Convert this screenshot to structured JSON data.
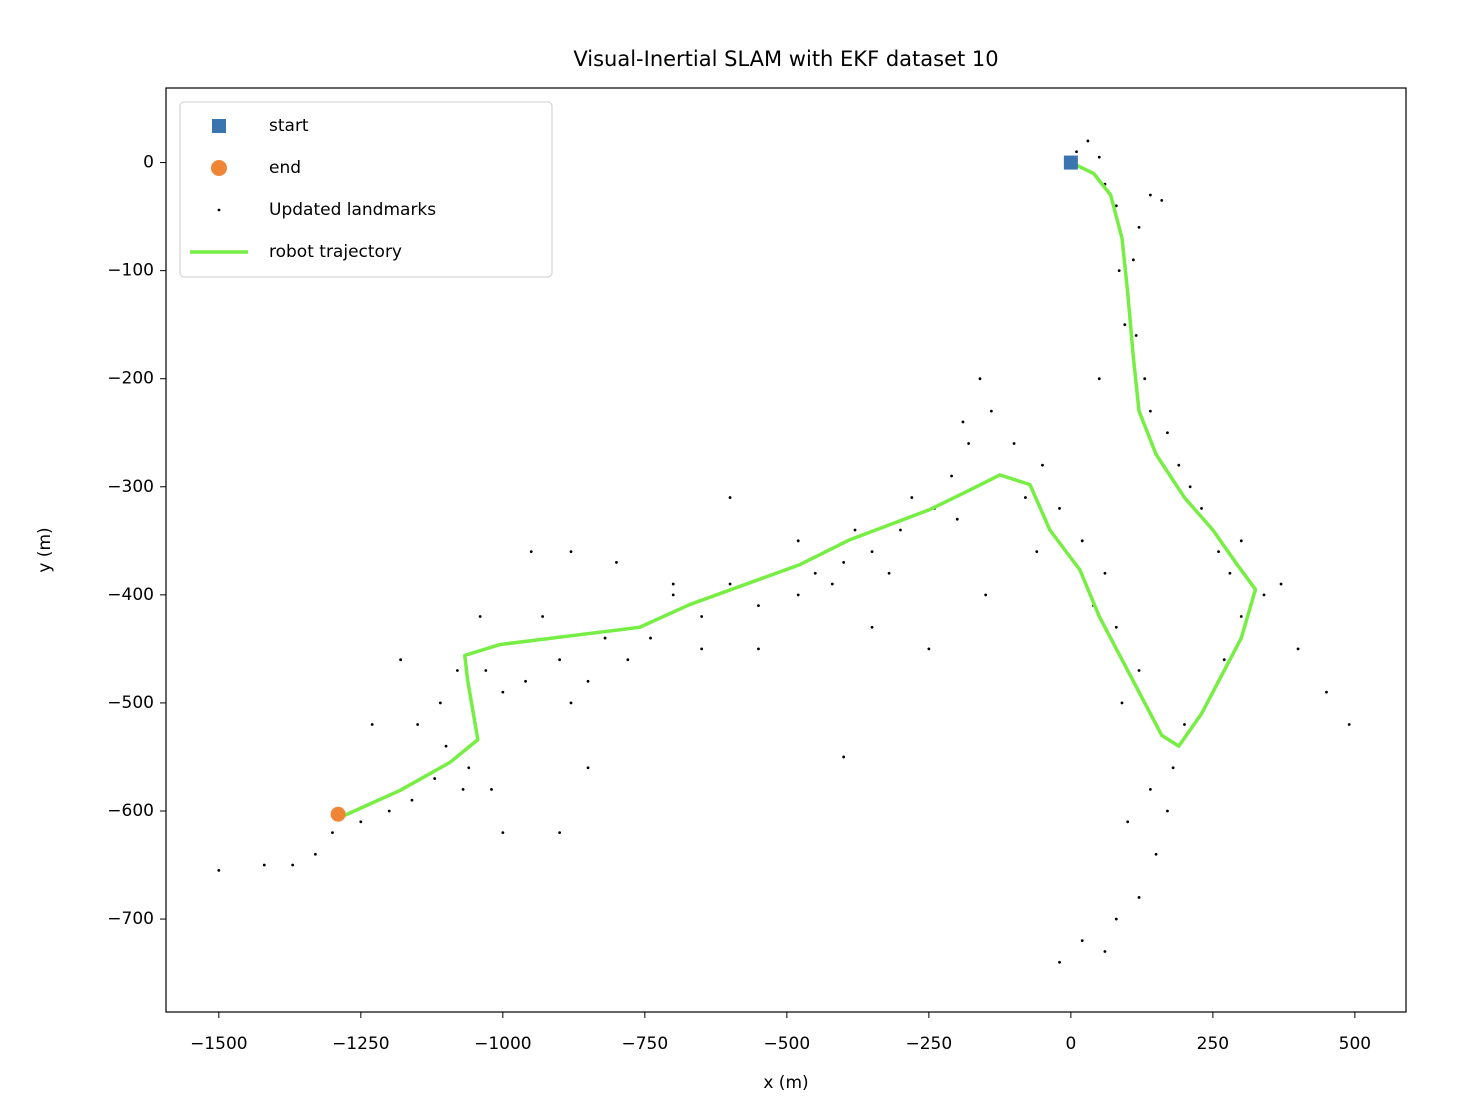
{
  "chart_data": {
    "type": "scatter",
    "title": "Visual-Inertial SLAM with EKF dataset 10",
    "xlabel": "x (m)",
    "ylabel": "y (m)",
    "xlim": [
      -1593,
      590
    ],
    "ylim": [
      -786,
      69
    ],
    "xticks": [
      {
        "value": -1500,
        "label": "−1500"
      },
      {
        "value": -1250,
        "label": "−1250"
      },
      {
        "value": -1000,
        "label": "−1000"
      },
      {
        "value": -750,
        "label": "−750"
      },
      {
        "value": -500,
        "label": "−500"
      },
      {
        "value": -250,
        "label": "−250"
      },
      0,
      250,
      500
    ],
    "yticks": [
      0,
      {
        "value": -100,
        "label": "−100"
      },
      {
        "value": -200,
        "label": "−200"
      },
      {
        "value": -300,
        "label": "−300"
      },
      {
        "value": -400,
        "label": "−400"
      },
      {
        "value": -500,
        "label": "−500"
      },
      {
        "value": -600,
        "label": "−600"
      },
      {
        "value": -700,
        "label": "−700"
      }
    ],
    "legend": "upper left",
    "series": [
      {
        "name": "start",
        "marker": "square",
        "color": "#3b75af",
        "x": [
          0
        ],
        "y": [
          0
        ]
      },
      {
        "name": "end",
        "marker": "circle",
        "color": "#ef8636",
        "x": [
          -1290
        ],
        "y": [
          -603
        ]
      },
      {
        "name": "Updated landmarks",
        "marker": "dot",
        "color": "#000000",
        "x": [
          10,
          30,
          50,
          60,
          80,
          120,
          140,
          160,
          85,
          110,
          95,
          115,
          130,
          140,
          170,
          190,
          210,
          230,
          260,
          280,
          300,
          340,
          370,
          400,
          450,
          490,
          50,
          300,
          270,
          240,
          200,
          180,
          170,
          150,
          120,
          80,
          60,
          20,
          -20,
          140,
          100,
          90,
          120,
          80,
          40,
          60,
          20,
          -20,
          -50,
          -100,
          -140,
          -160,
          -190,
          -210,
          -240,
          -300,
          -320,
          -350,
          -400,
          -420,
          -450,
          -480,
          -520,
          -550,
          -600,
          -650,
          -700,
          -740,
          -780,
          -820,
          -850,
          -880,
          -900,
          -930,
          -960,
          -1000,
          -1030,
          -1080,
          -1110,
          -1100,
          -1060,
          -1020,
          -1000,
          -1070,
          -1120,
          -1160,
          -1200,
          -1250,
          -1300,
          -1330,
          -1370,
          -1420,
          -1500,
          -1150,
          -1230,
          -1180,
          -1040,
          -950,
          -880,
          -800,
          -700,
          -600,
          -400,
          -850,
          -900,
          -250,
          -350,
          -150,
          -650,
          -550,
          -480,
          -380,
          -280,
          -200,
          -180,
          -80,
          -60
        ],
        "y": [
          10,
          20,
          5,
          -20,
          -40,
          -60,
          -30,
          -35,
          -100,
          -90,
          -150,
          -160,
          -200,
          -230,
          -250,
          -280,
          -300,
          -320,
          -360,
          -380,
          -350,
          -400,
          -390,
          -450,
          -490,
          -520,
          -200,
          -420,
          -460,
          -500,
          -520,
          -560,
          -600,
          -640,
          -680,
          -700,
          -730,
          -720,
          -740,
          -580,
          -610,
          -500,
          -470,
          -430,
          -410,
          -380,
          -350,
          -320,
          -280,
          -260,
          -230,
          -200,
          -240,
          -290,
          -320,
          -340,
          -380,
          -360,
          -370,
          -390,
          -380,
          -400,
          -380,
          -410,
          -390,
          -420,
          -400,
          -440,
          -460,
          -440,
          -480,
          -500,
          -460,
          -420,
          -480,
          -490,
          -470,
          -470,
          -500,
          -540,
          -560,
          -580,
          -620,
          -580,
          -570,
          -590,
          -600,
          -610,
          -620,
          -640,
          -650,
          -650,
          -655,
          -520,
          -520,
          -460,
          -420,
          -360,
          -360,
          -370,
          -390,
          -310,
          -550,
          -560,
          -620,
          -450,
          -430,
          -400,
          -450,
          -450,
          -350,
          -340,
          -310,
          -330,
          -260,
          -310,
          -360
        ]
      },
      {
        "name": "robot trajectory",
        "marker": "line",
        "color": "#77ee44",
        "x": [
          0,
          40,
          70,
          90,
          100,
          110,
          120,
          150,
          200,
          250,
          290,
          325,
          300,
          260,
          230,
          190,
          160,
          100,
          50,
          16,
          -37,
          -72,
          -125,
          -178,
          -248,
          -389,
          -477,
          -671,
          -759,
          -1005,
          -1067,
          -1062,
          -1044,
          -1093,
          -1181,
          -1287
        ],
        "y": [
          0,
          -10,
          -30,
          -70,
          -120,
          -180,
          -230,
          -270,
          -310,
          -340,
          -370,
          -395,
          -440,
          -480,
          -510,
          -540,
          -530,
          -470,
          -420,
          -377,
          -340,
          -298,
          -289,
          -303,
          -321,
          -349,
          -372,
          -409,
          -430,
          -446,
          -456,
          -479,
          -534,
          -555,
          -581,
          -606
        ]
      }
    ]
  }
}
